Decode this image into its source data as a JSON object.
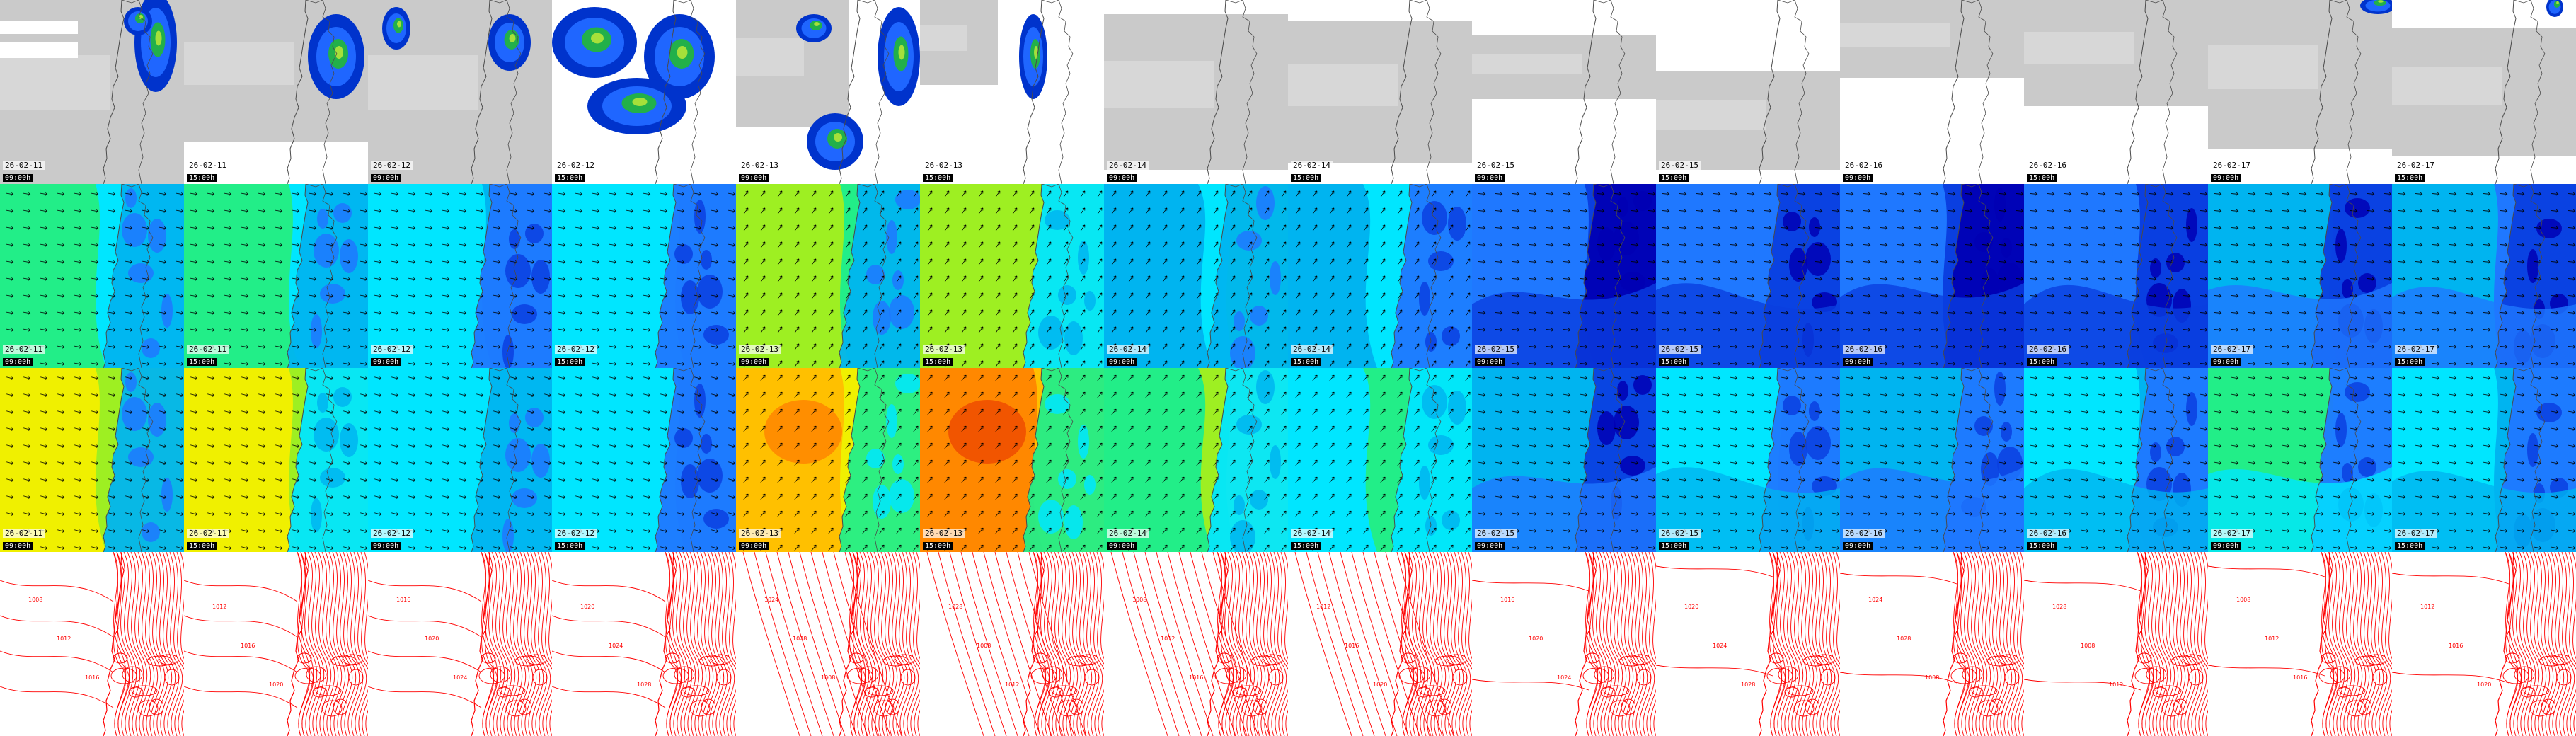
{
  "rows": [
    {
      "name": "precipitation",
      "kind": "precip"
    },
    {
      "name": "wind-speed-10m",
      "kind": "wind"
    },
    {
      "name": "wind-gust",
      "kind": "gust"
    },
    {
      "name": "sea-level-pressure",
      "kind": "pressure"
    }
  ],
  "columns": [
    {
      "date": "26-02-11",
      "time": "09:00h"
    },
    {
      "date": "26-02-11",
      "time": "15:00h"
    },
    {
      "date": "26-02-12",
      "time": "09:00h"
    },
    {
      "date": "26-02-12",
      "time": "15:00h"
    },
    {
      "date": "26-02-13",
      "time": "09:00h"
    },
    {
      "date": "26-02-13",
      "time": "15:00h"
    },
    {
      "date": "26-02-14",
      "time": "09:00h"
    },
    {
      "date": "26-02-14",
      "time": "15:00h"
    },
    {
      "date": "26-02-15",
      "time": "09:00h"
    },
    {
      "date": "26-02-15",
      "time": "15:00h"
    },
    {
      "date": "26-02-16",
      "time": "09:00h"
    },
    {
      "date": "26-02-16",
      "time": "15:00h"
    },
    {
      "date": "26-02-17",
      "time": "09:00h"
    },
    {
      "date": "26-02-17",
      "time": "15:00h"
    }
  ],
  "colors": {
    "precip": [
      "#0033cc",
      "#1f66ff",
      "#22b04a",
      "#a6e03a"
    ],
    "cloud": "#b8b8b8",
    "wind_scale": [
      "#0000b4",
      "#0a3fe0",
      "#1f78ff",
      "#00b4f0",
      "#00e6ff",
      "#22ee88",
      "#9eef22",
      "#f0f000",
      "#ffc000",
      "#ff8800",
      "#f05000"
    ],
    "pressure_line": "#ff0000",
    "coast": "#4a4a4a"
  },
  "pressure_labels": [
    "1008",
    "1012",
    "1016",
    "1020",
    "1024",
    "1028"
  ]
}
